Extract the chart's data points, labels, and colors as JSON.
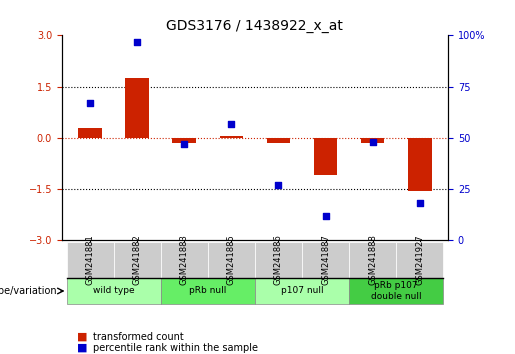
{
  "title": "GDS3176 / 1438922_x_at",
  "samples": [
    "GSM241881",
    "GSM241882",
    "GSM241883",
    "GSM241885",
    "GSM241886",
    "GSM241887",
    "GSM241888",
    "GSM241927"
  ],
  "bar_values": [
    0.3,
    1.75,
    -0.15,
    0.05,
    -0.15,
    -1.1,
    -0.15,
    -1.55
  ],
  "dot_values": [
    67,
    97,
    47,
    57,
    27,
    12,
    48,
    18
  ],
  "ylim": [
    -3,
    3
  ],
  "y2lim": [
    0,
    100
  ],
  "yticks": [
    -3,
    -1.5,
    0,
    1.5,
    3
  ],
  "y2ticks": [
    0,
    25,
    50,
    75,
    100
  ],
  "bar_color": "#cc2200",
  "dot_color": "#0000cc",
  "bar_width": 0.5,
  "groups": [
    {
      "label": "wild type",
      "start": 0,
      "end": 2,
      "color": "#aaffaa"
    },
    {
      "label": "pRb null",
      "start": 2,
      "end": 4,
      "color": "#66ee66"
    },
    {
      "label": "p107 null",
      "start": 4,
      "end": 6,
      "color": "#aaffaa"
    },
    {
      "label": "pRb p107\ndouble null",
      "start": 6,
      "end": 8,
      "color": "#44cc44"
    }
  ],
  "genotype_label": "genotype/variation",
  "legend_bar": "transformed count",
  "legend_dot": "percentile rank within the sample",
  "tick_label_size": 7,
  "title_size": 10,
  "bg_color": "#ffffff",
  "plot_bg": "#ffffff",
  "xtick_bg": "#cccccc"
}
